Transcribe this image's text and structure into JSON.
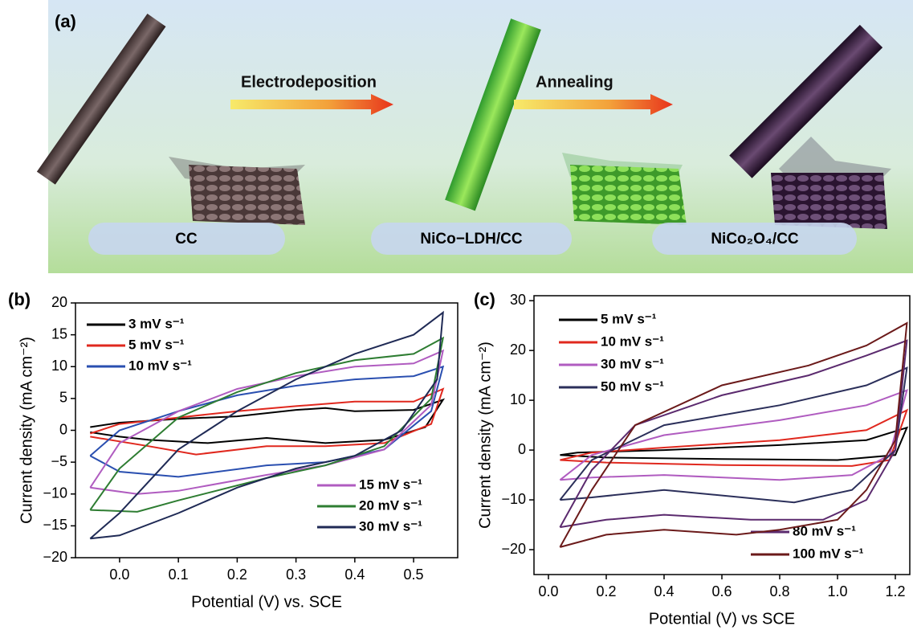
{
  "diagram": {
    "label": "(a)",
    "steps": [
      "Electrodeposition",
      "Annealing"
    ],
    "materials": [
      "CC",
      "NiCo−LDH/CC",
      "NiCo₂O₄/CC"
    ]
  },
  "chart_data": [
    {
      "type": "line",
      "label": "(b)",
      "x_label": "Potential (V) vs. SCE",
      "y_label": "Current density (mA cm⁻²)",
      "xlim": [
        -0.075,
        0.575
      ],
      "xticks": [
        {
          "value": 0,
          "label": "0.0"
        },
        0.1,
        0.2,
        0.3,
        0.4,
        0.5
      ],
      "ylim": [
        -20,
        20
      ],
      "yticks": [
        {
          "value": -20,
          "label": "−20"
        },
        {
          "value": -15,
          "label": "−15"
        },
        {
          "value": -10,
          "label": "−10"
        },
        {
          "value": -5,
          "label": "−5"
        },
        0,
        5,
        10,
        15,
        20
      ],
      "series": [
        {
          "name": "3 mV s⁻¹",
          "color": "#000000",
          "legend_loc": "upper left",
          "x": [
            -0.05,
            0,
            0.1,
            0.2,
            0.3,
            0.35,
            0.4,
            0.5,
            0.55,
            0.52,
            0.45,
            0.35,
            0.25,
            0.15,
            0.05,
            0,
            -0.05
          ],
          "values": [
            0.5,
            1.2,
            1.8,
            2.2,
            3.2,
            3.5,
            3.0,
            3.2,
            4.8,
            0.5,
            -1.5,
            -2,
            -1.2,
            -2,
            -1.5,
            -1,
            -0.3
          ]
        },
        {
          "name": "5 mV s⁻¹",
          "color": "#e0281e",
          "legend_loc": "upper left",
          "x": [
            -0.05,
            0,
            0.1,
            0.2,
            0.3,
            0.4,
            0.5,
            0.55,
            0.53,
            0.45,
            0.35,
            0.25,
            0.13,
            0.05,
            -0.05
          ],
          "values": [
            -0.5,
            1,
            2,
            3,
            3.8,
            4.5,
            4.5,
            6.5,
            1,
            -2,
            -2.5,
            -2.5,
            -3.8,
            -2.5,
            -1
          ]
        },
        {
          "name": "10 mV s⁻¹",
          "color": "#2a4fb0",
          "legend_loc": "upper left",
          "x": [
            -0.05,
            0,
            0.1,
            0.2,
            0.3,
            0.4,
            0.5,
            0.55,
            0.53,
            0.45,
            0.35,
            0.25,
            0.1,
            0,
            -0.05
          ],
          "values": [
            -4,
            0,
            3,
            5.5,
            7,
            8,
            8.5,
            10,
            3,
            -3,
            -5,
            -5.5,
            -7.3,
            -6.5,
            -4
          ]
        },
        {
          "name": "15 mV s⁻¹",
          "color": "#b05cc0",
          "legend_loc": "lower right",
          "x": [
            -0.05,
            0,
            0.1,
            0.2,
            0.3,
            0.4,
            0.5,
            0.55,
            0.53,
            0.45,
            0.35,
            0.25,
            0.1,
            0.03,
            -0.05
          ],
          "values": [
            -9,
            -2,
            3,
            6.5,
            8.5,
            10,
            10.5,
            12.5,
            4,
            -3,
            -5.5,
            -7,
            -9.5,
            -10,
            -9
          ]
        },
        {
          "name": "20 mV s⁻¹",
          "color": "#2e7d32",
          "legend_loc": "lower right",
          "x": [
            -0.05,
            0,
            0.1,
            0.2,
            0.3,
            0.4,
            0.5,
            0.55,
            0.53,
            0.45,
            0.35,
            0.25,
            0.1,
            0.03,
            -0.05
          ],
          "values": [
            -12.5,
            -6,
            2,
            6,
            9,
            11,
            12,
            14.5,
            5,
            -2.5,
            -5.5,
            -7.5,
            -11,
            -12.8,
            -12.5
          ]
        },
        {
          "name": "30 mV s⁻¹",
          "color": "#1f2a55",
          "legend_loc": "lower right",
          "x": [
            -0.05,
            0,
            0.1,
            0.2,
            0.3,
            0.4,
            0.5,
            0.55,
            0.54,
            0.48,
            0.4,
            0.3,
            0.2,
            0.1,
            0,
            -0.05
          ],
          "values": [
            -17,
            -13,
            -3,
            3,
            8,
            12,
            15,
            18.5,
            8,
            0,
            -4,
            -6,
            -9,
            -13,
            -16.5,
            -17
          ]
        }
      ]
    },
    {
      "type": "line",
      "label": "(c)",
      "x_label": "Potential (V) vs SCE",
      "y_label": "Current density (mA cm⁻²)",
      "xlim": [
        -0.05,
        1.25
      ],
      "xticks": [
        {
          "value": 0,
          "label": "0.0"
        },
        0.2,
        0.4,
        0.6,
        0.8,
        {
          "value": 1,
          "label": "1.0"
        },
        1.2
      ],
      "ylim": [
        -25,
        31
      ],
      "yticks": [
        {
          "value": -20,
          "label": "−20"
        },
        {
          "value": -10,
          "label": "−10"
        },
        0,
        10,
        20,
        30
      ],
      "series": [
        {
          "name": "5 mV s⁻¹",
          "color": "#000000",
          "legend_loc": "upper left",
          "x": [
            0.04,
            0.1,
            0.4,
            0.8,
            1.1,
            1.24,
            1.2,
            1.0,
            0.6,
            0.2,
            0.04
          ],
          "values": [
            -1,
            -0.5,
            0,
            1,
            2,
            4.5,
            -1,
            -2,
            -1.8,
            -1.5,
            -1
          ]
        },
        {
          "name": "10 mV s⁻¹",
          "color": "#e0281e",
          "legend_loc": "upper left",
          "x": [
            0.04,
            0.15,
            0.4,
            0.8,
            1.1,
            1.24,
            1.18,
            1.05,
            0.6,
            0.2,
            0.04
          ],
          "values": [
            -2,
            -0.5,
            0.5,
            2,
            4,
            8,
            -2,
            -3.2,
            -3,
            -2.5,
            -2
          ]
        },
        {
          "name": "30 mV s⁻¹",
          "color": "#b05cc0",
          "legend_loc": "upper left",
          "x": [
            0.04,
            0.15,
            0.4,
            0.8,
            1.1,
            1.24,
            1.18,
            1.05,
            0.8,
            0.4,
            0.15,
            0.04
          ],
          "values": [
            -6,
            -1,
            3,
            6,
            9,
            12,
            -1,
            -5,
            -6,
            -5,
            -5.5,
            -6
          ]
        },
        {
          "name": "50 mV s⁻¹",
          "color": "#2b2f5a",
          "legend_loc": "upper left",
          "x": [
            0.04,
            0.15,
            0.4,
            0.8,
            1.1,
            1.24,
            1.2,
            1.05,
            0.85,
            0.4,
            0.15,
            0.04
          ],
          "values": [
            -10,
            -2,
            5,
            9,
            13,
            16.5,
            0,
            -8,
            -10.5,
            -8,
            -9.5,
            -10
          ]
        },
        {
          "name": "80 mV s⁻¹",
          "color": "#5b2a6e",
          "legend_loc": "lower right",
          "x": [
            0.04,
            0.15,
            0.3,
            0.6,
            0.9,
            1.1,
            1.24,
            1.2,
            1.1,
            0.95,
            0.7,
            0.4,
            0.2,
            0.04
          ],
          "values": [
            -15.5,
            -4,
            5,
            11,
            15,
            19,
            22,
            0,
            -10,
            -14,
            -14,
            -13,
            -14,
            -15.5
          ]
        },
        {
          "name": "100 mV s⁻¹",
          "color": "#6b1a1a",
          "legend_loc": "lower right",
          "x": [
            0.04,
            0.15,
            0.3,
            0.6,
            0.9,
            1.1,
            1.24,
            1.2,
            1.1,
            1.0,
            0.8,
            0.65,
            0.4,
            0.2,
            0.04
          ],
          "values": [
            -19.5,
            -8,
            5,
            13,
            17,
            21,
            25.5,
            2,
            -8,
            -14,
            -16,
            -17,
            -16,
            -17,
            -19.5
          ]
        }
      ]
    }
  ]
}
